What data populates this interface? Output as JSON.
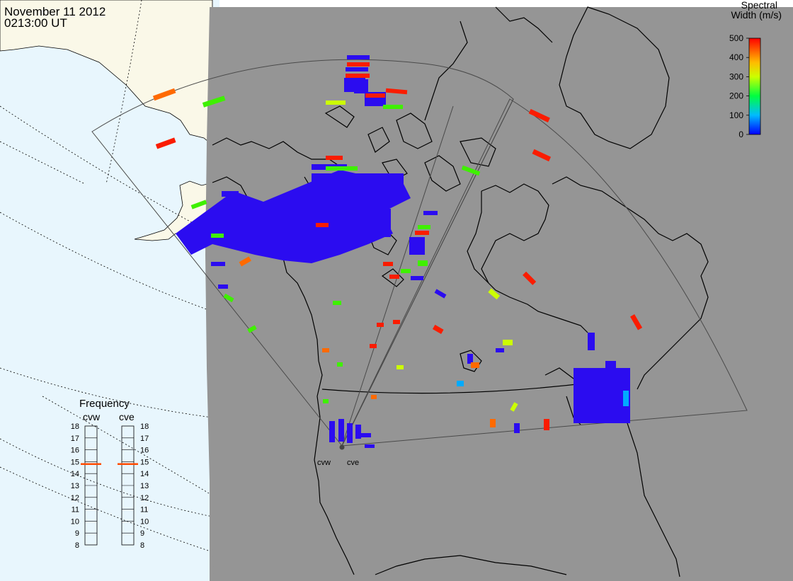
{
  "header": {
    "date": "November 11 2012",
    "time": "0213:00 UT"
  },
  "colorbar": {
    "title_line1": "Spectral",
    "title_line2": "Width (m/s)",
    "ticks": [
      "500",
      "400",
      "300",
      "200",
      "100",
      "0"
    ],
    "max": 500,
    "min": 0
  },
  "frequency_panel": {
    "title": "Frequency",
    "radars": [
      {
        "id": "cvw",
        "label": "cvw",
        "frequency": 14.8
      },
      {
        "id": "cve",
        "label": "cve",
        "frequency": 14.8
      }
    ],
    "scale": [
      "18",
      "17",
      "16",
      "15",
      "14",
      "13",
      "12",
      "11",
      "10",
      "9",
      "8"
    ],
    "min": 8,
    "max": 18
  },
  "radar_sites": [
    {
      "id": "cvw",
      "label": "cvw"
    },
    {
      "id": "cve",
      "label": "cve"
    }
  ],
  "colors": {
    "background_gray": "#959595",
    "ocean": "#e8f6fd",
    "land": "#faf8e8",
    "coast": "#000000",
    "fov_outline": "#555555",
    "low_width": "#2b0cf0",
    "mid_width": "#3ff000",
    "high_width": "#fa1c00"
  }
}
